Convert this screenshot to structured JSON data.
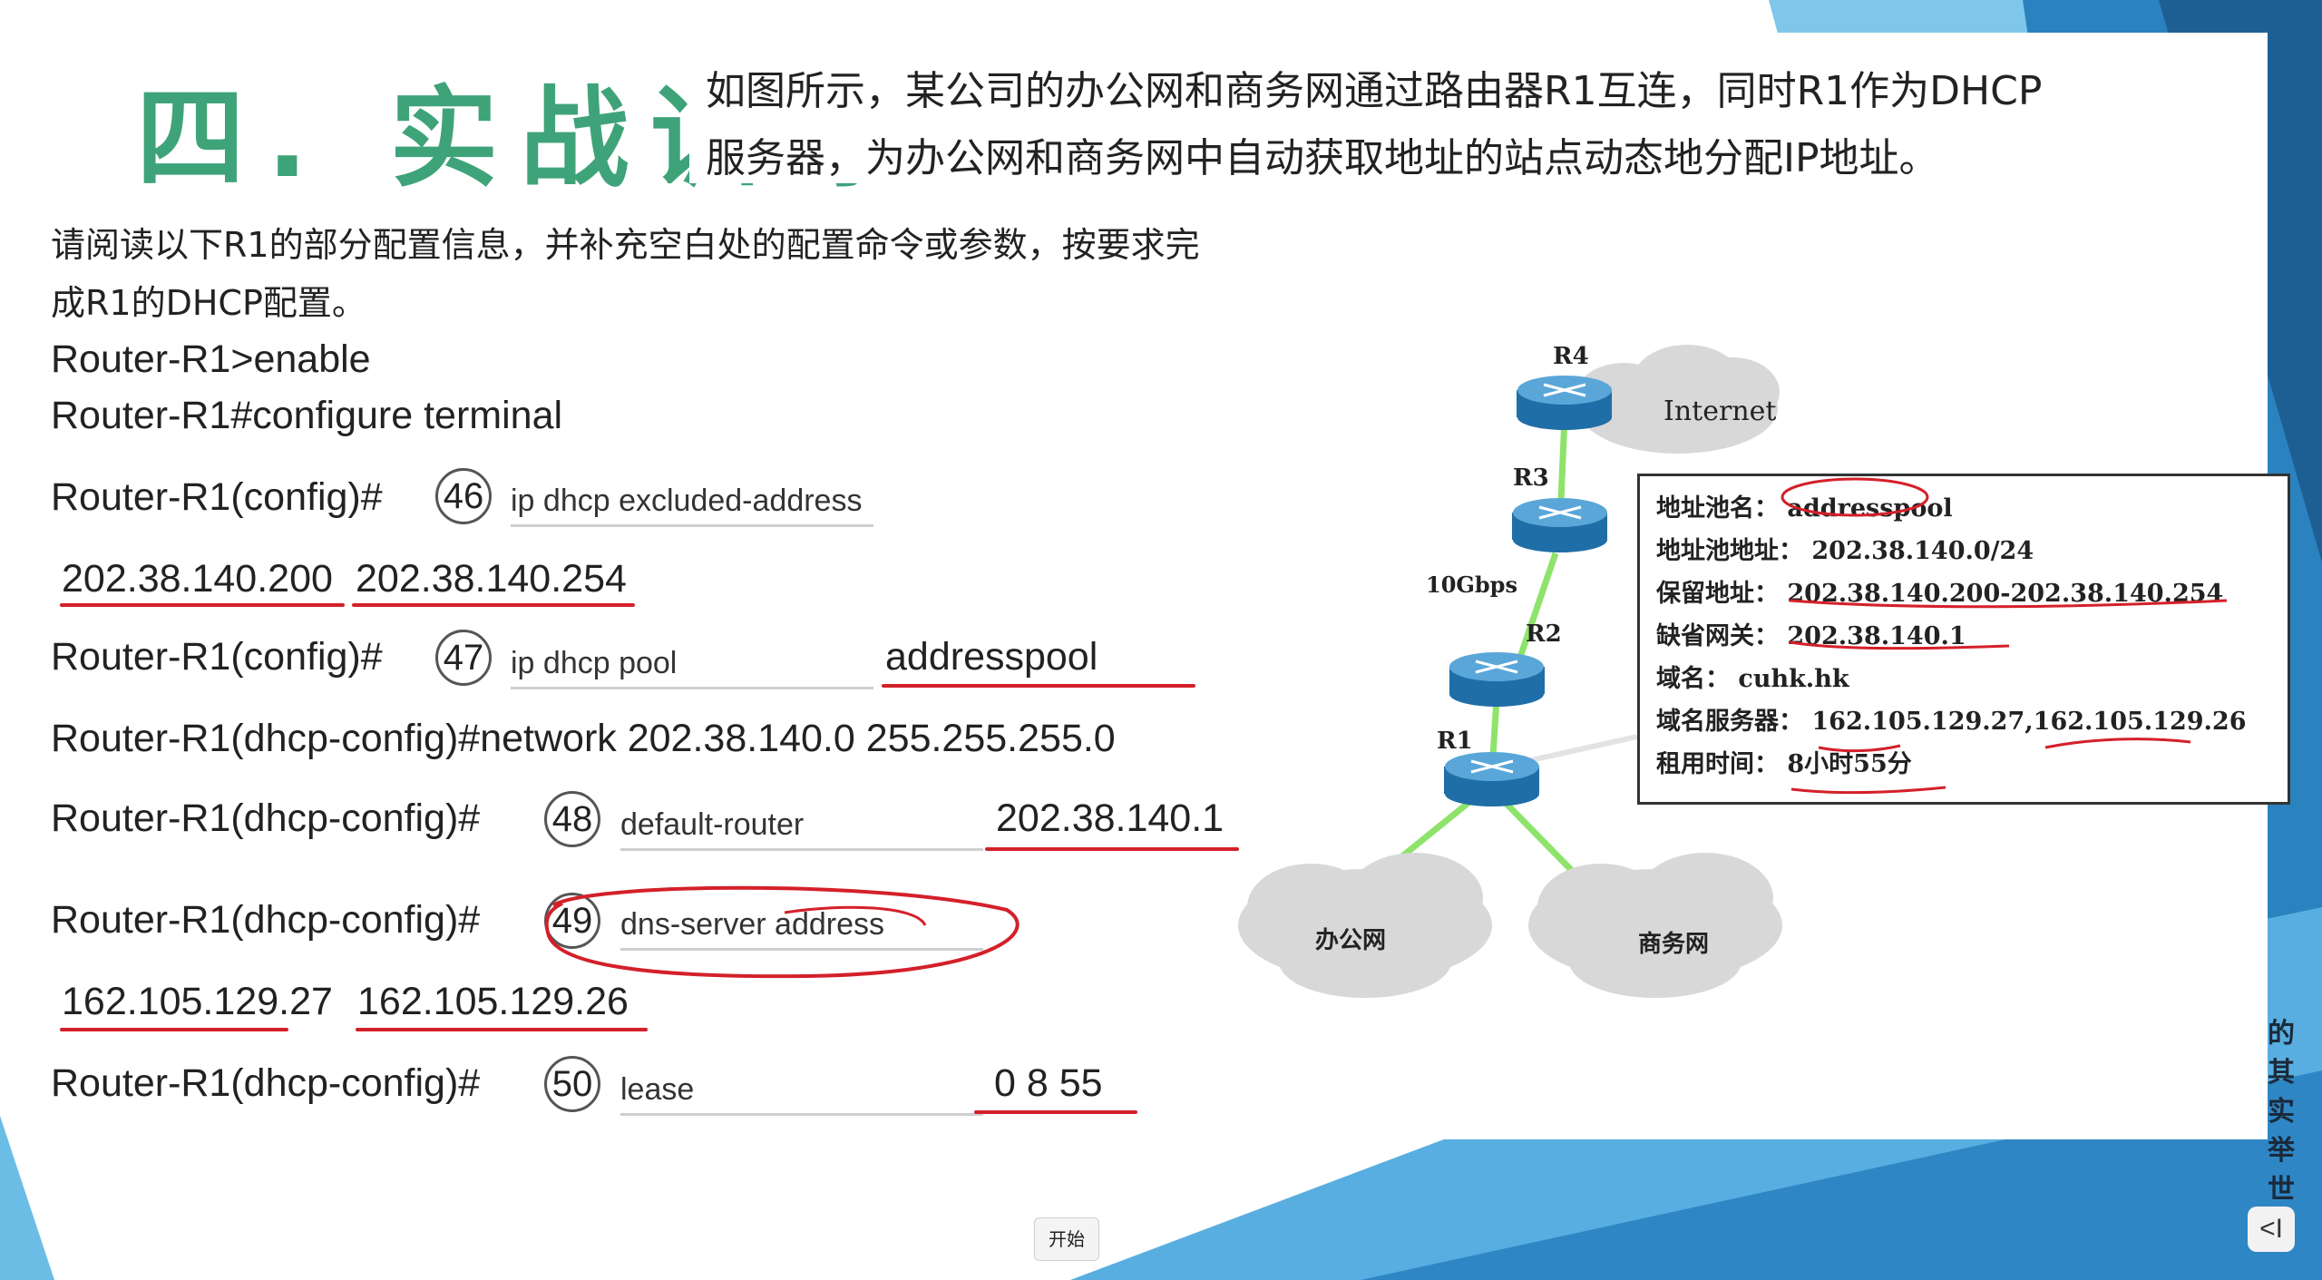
{
  "slide": {
    "heading": "四. 实战训练",
    "intro_lines": [
      "如图所示，某公司的办公网和商务网通过路由器R1互连，同时R1作为DHCP",
      "服务器，为办公网和商务网中自动获取地址的站点动态地分配IP地址。"
    ],
    "task_lines": [
      "请阅读以下R1的部分配置信息，并补充空白处的配置命令或参数，按要求完",
      "成R1的DHCP配置。"
    ],
    "commands": {
      "enable": "Router-R1>enable",
      "configure": "Router-R1#configure terminal",
      "q46_prompt": "Router-R1(config)#",
      "q46_num": "46",
      "q46_field": "ip dhcp excluded-address",
      "q46_answer_a": "202.38.140.200",
      "q46_answer_b": "202.38.140.254",
      "q47_prompt": "Router-R1(config)#",
      "q47_num": "47",
      "q47_field": "ip dhcp pool",
      "q47_answer": "addresspool",
      "network": "Router-R1(dhcp-config)#network 202.38.140.0 255.255.255.0",
      "q48_prompt": "Router-R1(dhcp-config)#",
      "q48_num": "48",
      "q48_field": "default-router",
      "q48_answer": "202.38.140.1",
      "q49_prompt": "Router-R1(dhcp-config)#",
      "q49_num": "49",
      "q49_field": "dns-server address",
      "q49_answer_a": "162.105.129.27",
      "q49_answer_b": "162.105.129.26",
      "q50_prompt": "Router-R1(dhcp-config)#",
      "q50_num": "50",
      "q50_field": "lease",
      "q50_answer": "0 8 55"
    }
  },
  "diagram": {
    "routers": {
      "r4": "R4",
      "r3": "R3",
      "r2": "R2",
      "r1": "R1"
    },
    "internet": "Internet",
    "link_speed": "10Gbps",
    "office_net": "办公网",
    "business_net": "商务网",
    "info": {
      "pool_name": "地址池名： addresspool",
      "pool_addr": "地址池地址： 202.38.140.0/24",
      "reserved": "保留地址： 202.38.140.200-202.38.140.254",
      "gateway": "缺省网关： 202.38.140.1",
      "domain": "域名： cuhk.hk",
      "dns": "域名服务器： 162.105.129.27,162.105.129.26",
      "lease": "租用时间： 8小时55分"
    }
  },
  "controls": {
    "start_label": "开始",
    "nav_label": "<I",
    "side_text": "的其实举世"
  },
  "colors": {
    "accent_green": "#3fa37a",
    "annotation_red": "#d4202a",
    "deco_blue": "#1f6ea8",
    "link_green": "#8ee36b"
  }
}
